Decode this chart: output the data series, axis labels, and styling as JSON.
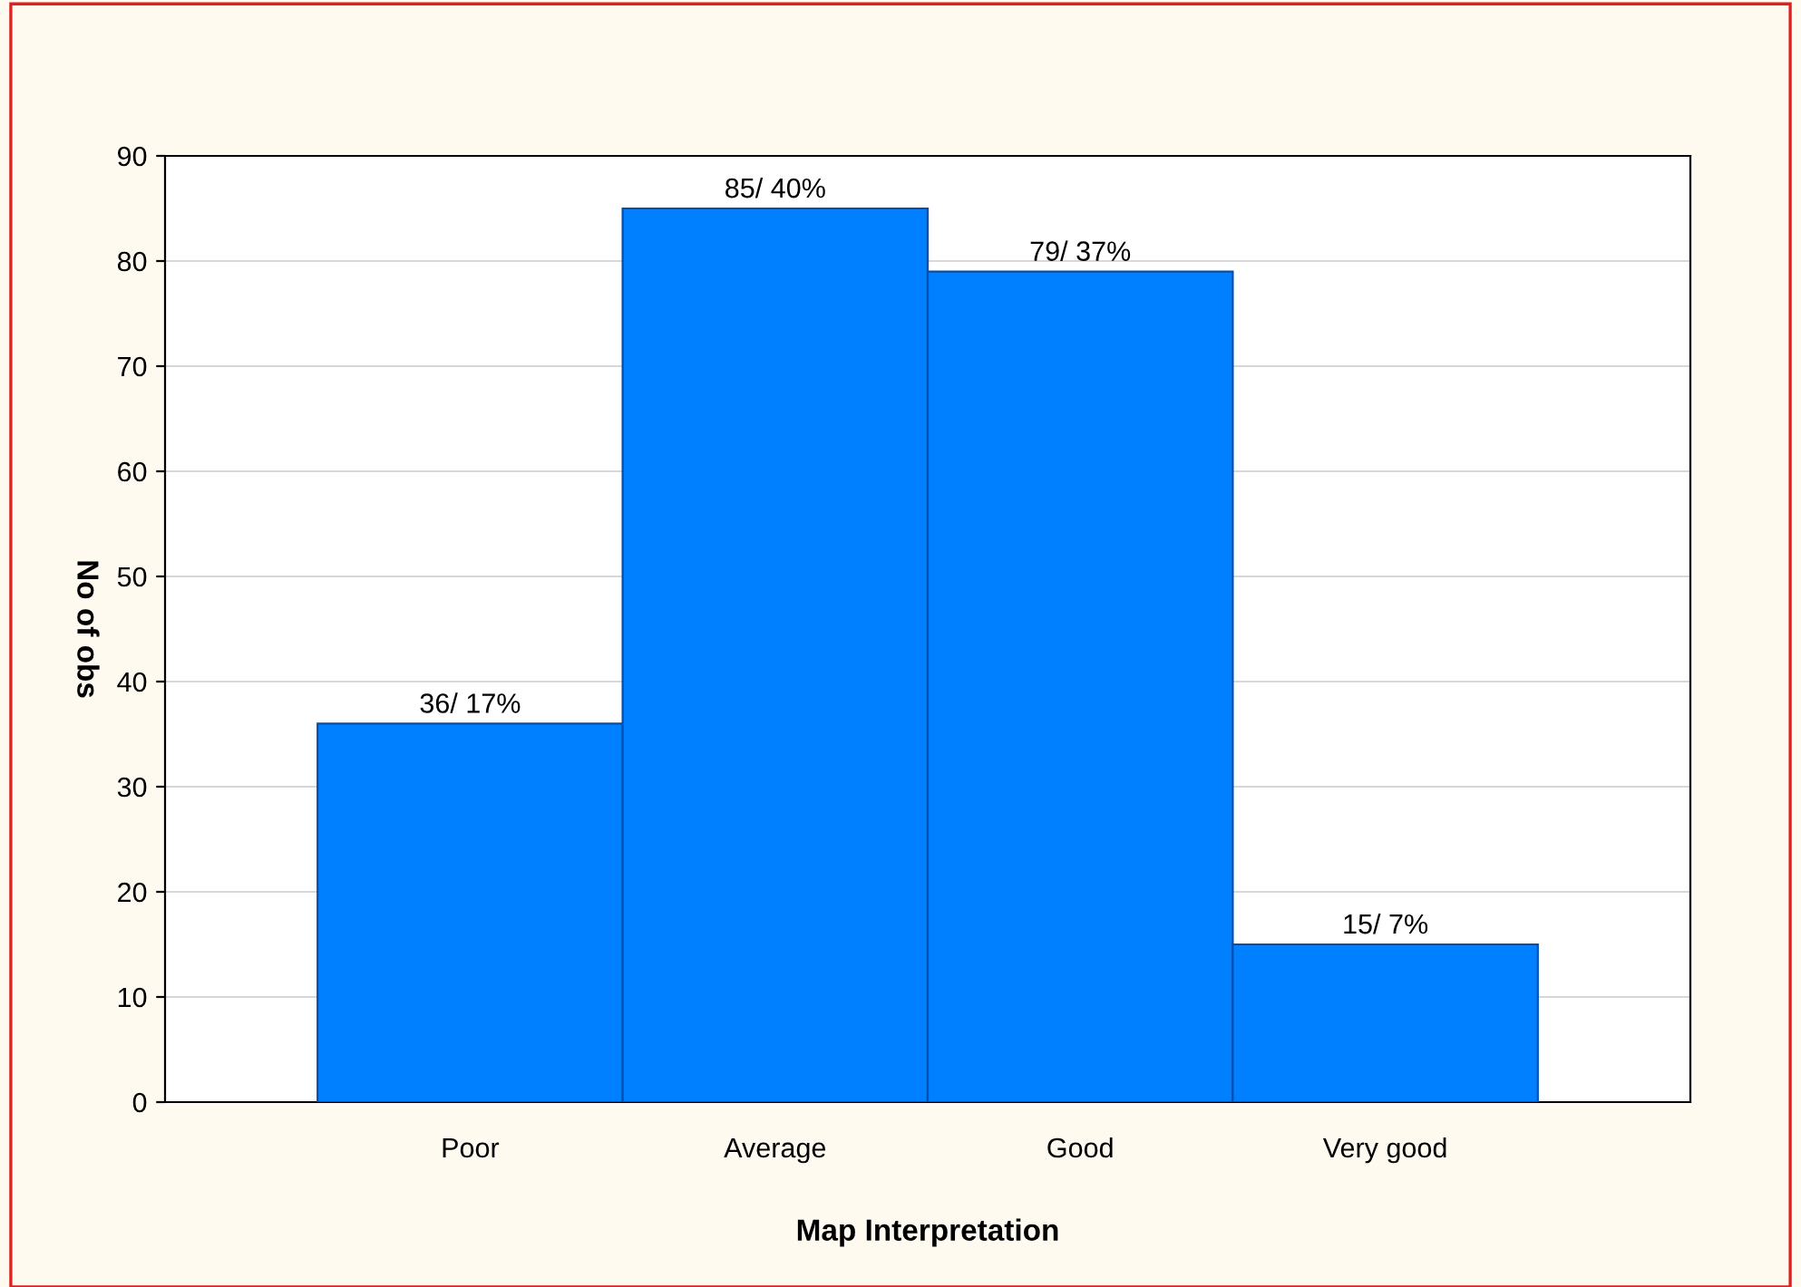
{
  "chart_data": {
    "type": "bar",
    "xlabel": "Map Interpretation",
    "ylabel": "No of obs",
    "categories": [
      "Poor",
      "Average",
      "Good",
      "Very good"
    ],
    "values": [
      36,
      85,
      79,
      15
    ],
    "value_labels": [
      "36/ 17%",
      "85/ 40%",
      "79/ 37%",
      "15/ 7%"
    ],
    "color": "#0080ff",
    "ylim": [
      0,
      90
    ],
    "yticks": [
      0,
      10,
      20,
      30,
      40,
      50,
      60,
      70,
      80,
      90
    ],
    "grid": "y",
    "legend": false
  }
}
